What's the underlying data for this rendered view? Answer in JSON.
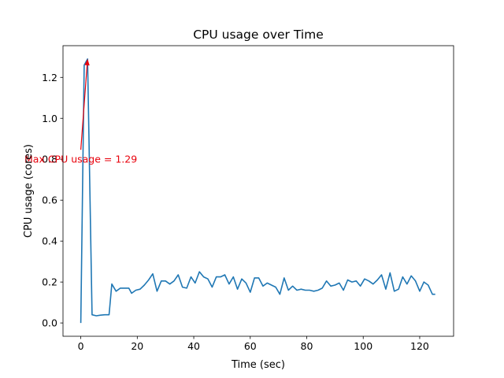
{
  "chart_data": {
    "type": "line",
    "title": "CPU usage over Time",
    "xlabel": "Time (sec)",
    "ylabel": "CPU usage (cores)",
    "xlim": [
      -6.3,
      132
    ],
    "ylim": [
      -0.065,
      1.355
    ],
    "xticks": [
      0,
      20,
      40,
      60,
      80,
      100,
      120
    ],
    "xtick_labels": [
      "0",
      "20",
      "40",
      "60",
      "80",
      "100",
      "120"
    ],
    "yticks": [
      0.0,
      0.2,
      0.4,
      0.6,
      0.8,
      1.0,
      1.2
    ],
    "ytick_labels": [
      "0.0",
      "0.2",
      "0.4",
      "0.6",
      "0.8",
      "1.0",
      "1.2"
    ],
    "grid": false,
    "line_color": "#1f77b4",
    "annotation_color": "#e8000b",
    "series": [
      {
        "x": [
          0,
          1.2,
          2.4,
          4,
          5.5,
          7,
          8.5,
          10,
          11,
          12.5,
          14,
          15.5,
          17,
          18,
          19.5,
          21,
          22.5,
          24,
          25.5,
          27,
          28.5,
          30,
          31.5,
          33,
          34.5,
          36,
          37.5,
          39,
          40.5,
          42,
          43.5,
          45,
          46.5,
          48,
          49.5,
          51,
          52.5,
          54,
          55.5,
          57,
          58.5,
          60,
          61.5,
          63,
          64.5,
          66,
          67.5,
          69,
          70.5,
          72,
          73.5,
          75,
          76.5,
          78,
          79.5,
          81,
          82.5,
          84,
          85.5,
          87,
          88.5,
          90,
          91.5,
          93,
          94.5,
          96,
          97.5,
          99,
          100.5,
          102,
          103.5,
          105,
          106.5,
          108,
          109.5,
          111,
          112.5,
          114,
          115.5,
          117,
          118.5,
          120,
          121.5,
          123,
          124.5,
          125.5
        ],
        "y": [
          0.0,
          1.26,
          1.29,
          0.04,
          0.035,
          0.038,
          0.04,
          0.04,
          0.19,
          0.155,
          0.17,
          0.17,
          0.17,
          0.145,
          0.16,
          0.165,
          0.185,
          0.21,
          0.24,
          0.155,
          0.205,
          0.205,
          0.19,
          0.205,
          0.235,
          0.175,
          0.17,
          0.225,
          0.195,
          0.25,
          0.225,
          0.215,
          0.175,
          0.225,
          0.225,
          0.235,
          0.19,
          0.225,
          0.165,
          0.215,
          0.195,
          0.15,
          0.22,
          0.22,
          0.18,
          0.195,
          0.185,
          0.175,
          0.14,
          0.22,
          0.16,
          0.18,
          0.16,
          0.165,
          0.16,
          0.16,
          0.155,
          0.16,
          0.17,
          0.205,
          0.18,
          0.185,
          0.195,
          0.16,
          0.21,
          0.2,
          0.205,
          0.18,
          0.215,
          0.205,
          0.19,
          0.21,
          0.235,
          0.165,
          0.245,
          0.155,
          0.165,
          0.225,
          0.19,
          0.23,
          0.205,
          0.155,
          0.2,
          0.185,
          0.14,
          0.14
        ]
      }
    ],
    "annotation": {
      "text": "Max CPU usage = 1.29",
      "point": [
        2.4,
        1.29
      ],
      "text_anchor_xy": [
        0,
        0.8
      ]
    }
  }
}
